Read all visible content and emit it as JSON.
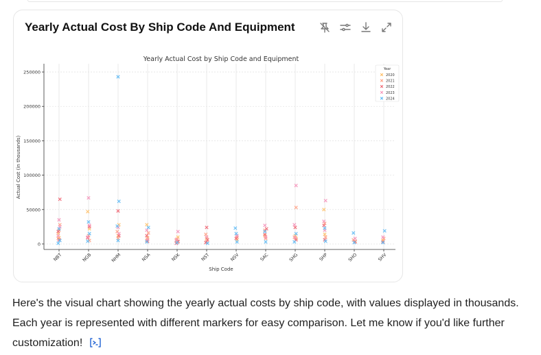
{
  "card": {
    "title": "Yearly Actual Cost By Ship Code And Equipment"
  },
  "toolbar": {
    "icons": [
      "pin-off-icon",
      "sliders-icon",
      "download-icon",
      "expand-icon"
    ]
  },
  "message": {
    "text": "Here's the visual chart showing the yearly actual costs by ship code, with values displayed in thousands. Each year is represented with different markers for easy comparison. Let me know if you'd like further customization!"
  },
  "chart_data": {
    "type": "scatter",
    "title": "Yearly Actual Cost by Ship Code and Equipment",
    "xlabel": "Ship Code",
    "ylabel": "Actual Cost (in thousands)",
    "categories": [
      "NBT",
      "NGB",
      "NHM",
      "NSA",
      "NSK",
      "NST",
      "NSV",
      "SAC",
      "SHG",
      "SHP",
      "SHO",
      "SHV"
    ],
    "yticks": [
      0,
      50000,
      100000,
      150000,
      200000,
      250000
    ],
    "ylim": [
      -8000,
      262000
    ],
    "legend": {
      "title": "Year",
      "position": "top-right",
      "entries": [
        "2020",
        "2021",
        "2022",
        "2023",
        "2024"
      ]
    },
    "grid": true,
    "series": [
      {
        "name": "2020",
        "marker": "x",
        "color": "#ffbf66",
        "points": [
          [
            "NBT",
            15000
          ],
          [
            "NBT",
            9000
          ],
          [
            "NGB",
            22000
          ],
          [
            "NGB",
            47000
          ],
          [
            "NHM",
            12000
          ],
          [
            "NHM",
            28000
          ],
          [
            "NSA",
            28000
          ],
          [
            "NSA",
            9000
          ],
          [
            "NSK",
            10000
          ],
          [
            "NSK",
            5000
          ],
          [
            "NST",
            8000
          ],
          [
            "NSV",
            6000
          ],
          [
            "SAC",
            12000
          ],
          [
            "SHG",
            12000
          ],
          [
            "SHG",
            8000
          ],
          [
            "SHP",
            50000
          ],
          [
            "SHP",
            14000
          ],
          [
            "SHO",
            4000
          ],
          [
            "SHV",
            5000
          ]
        ]
      },
      {
        "name": "2021",
        "marker": "x",
        "color": "#ff9e80",
        "points": [
          [
            "NBT",
            20000
          ],
          [
            "NBT",
            28000
          ],
          [
            "NBT",
            8000
          ],
          [
            "NGB",
            12000
          ],
          [
            "NGB",
            5000
          ],
          [
            "NHM",
            18000
          ],
          [
            "NHM",
            8000
          ],
          [
            "NSA",
            16000
          ],
          [
            "NSA",
            5000
          ],
          [
            "NSK",
            7000
          ],
          [
            "NSK",
            3000
          ],
          [
            "NST",
            14000
          ],
          [
            "NST",
            3000
          ],
          [
            "NSV",
            10000
          ],
          [
            "SAC",
            20000
          ],
          [
            "SAC",
            8000
          ],
          [
            "SHG",
            53000
          ],
          [
            "SHG",
            10000
          ],
          [
            "SHP",
            30000
          ],
          [
            "SHP",
            10000
          ],
          [
            "SHO",
            6000
          ],
          [
            "SHV",
            8000
          ]
        ]
      },
      {
        "name": "2022",
        "marker": "x",
        "color": "#f0606e",
        "points": [
          [
            "NBT",
            65000
          ],
          [
            "NBT",
            18000
          ],
          [
            "NBT",
            6000
          ],
          [
            "NGB",
            25000
          ],
          [
            "NGB",
            9000
          ],
          [
            "NHM",
            48000
          ],
          [
            "NHM",
            12000
          ],
          [
            "NSA",
            12000
          ],
          [
            "NSA",
            4000
          ],
          [
            "NSK",
            4000
          ],
          [
            "NSK",
            1000
          ],
          [
            "NST",
            24000
          ],
          [
            "NST",
            6000
          ],
          [
            "NST",
            2000
          ],
          [
            "NSV",
            8000
          ],
          [
            "SAC",
            22000
          ],
          [
            "SAC",
            14000
          ],
          [
            "SHG",
            24000
          ],
          [
            "SHG",
            6000
          ],
          [
            "SHP",
            27000
          ],
          [
            "SHP",
            6000
          ],
          [
            "SHO",
            3000
          ],
          [
            "SHV",
            3000
          ]
        ]
      },
      {
        "name": "2023",
        "marker": "x",
        "color": "#f590b8",
        "points": [
          [
            "NBT",
            35000
          ],
          [
            "NBT",
            25000
          ],
          [
            "NBT",
            12000
          ],
          [
            "NGB",
            67000
          ],
          [
            "NGB",
            27000
          ],
          [
            "NGB",
            10000
          ],
          [
            "NHM",
            24000
          ],
          [
            "NHM",
            15000
          ],
          [
            "NSA",
            20000
          ],
          [
            "NSA",
            7000
          ],
          [
            "NSK",
            18000
          ],
          [
            "NSK",
            6000
          ],
          [
            "NST",
            10000
          ],
          [
            "NSV",
            12000
          ],
          [
            "SAC",
            27000
          ],
          [
            "SAC",
            10000
          ],
          [
            "SHG",
            85000
          ],
          [
            "SHG",
            28000
          ],
          [
            "SHG",
            9000
          ],
          [
            "SHP",
            63000
          ],
          [
            "SHP",
            33000
          ],
          [
            "SHP",
            20000
          ],
          [
            "SHO",
            8000
          ],
          [
            "SHV",
            10000
          ]
        ]
      },
      {
        "name": "2024",
        "marker": "x",
        "color": "#5bb8f5",
        "points": [
          [
            "NBT",
            22000
          ],
          [
            "NBT",
            5000
          ],
          [
            "NBT",
            1000
          ],
          [
            "NGB",
            32000
          ],
          [
            "NGB",
            15000
          ],
          [
            "NGB",
            4000
          ],
          [
            "NHM",
            243000
          ],
          [
            "NHM",
            62000
          ],
          [
            "NHM",
            26000
          ],
          [
            "NHM",
            5000
          ],
          [
            "NSA",
            24000
          ],
          [
            "NSA",
            3000
          ],
          [
            "NSK",
            2000
          ],
          [
            "NST",
            1000
          ],
          [
            "NSV",
            23000
          ],
          [
            "NSV",
            15000
          ],
          [
            "NSV",
            3000
          ],
          [
            "SAC",
            18000
          ],
          [
            "SAC",
            3000
          ],
          [
            "SHG",
            15000
          ],
          [
            "SHG",
            3000
          ],
          [
            "SHP",
            23000
          ],
          [
            "SHP",
            4000
          ],
          [
            "SHO",
            16000
          ],
          [
            "SHO",
            2000
          ],
          [
            "SHV",
            19000
          ],
          [
            "SHV",
            2000
          ]
        ]
      }
    ]
  }
}
